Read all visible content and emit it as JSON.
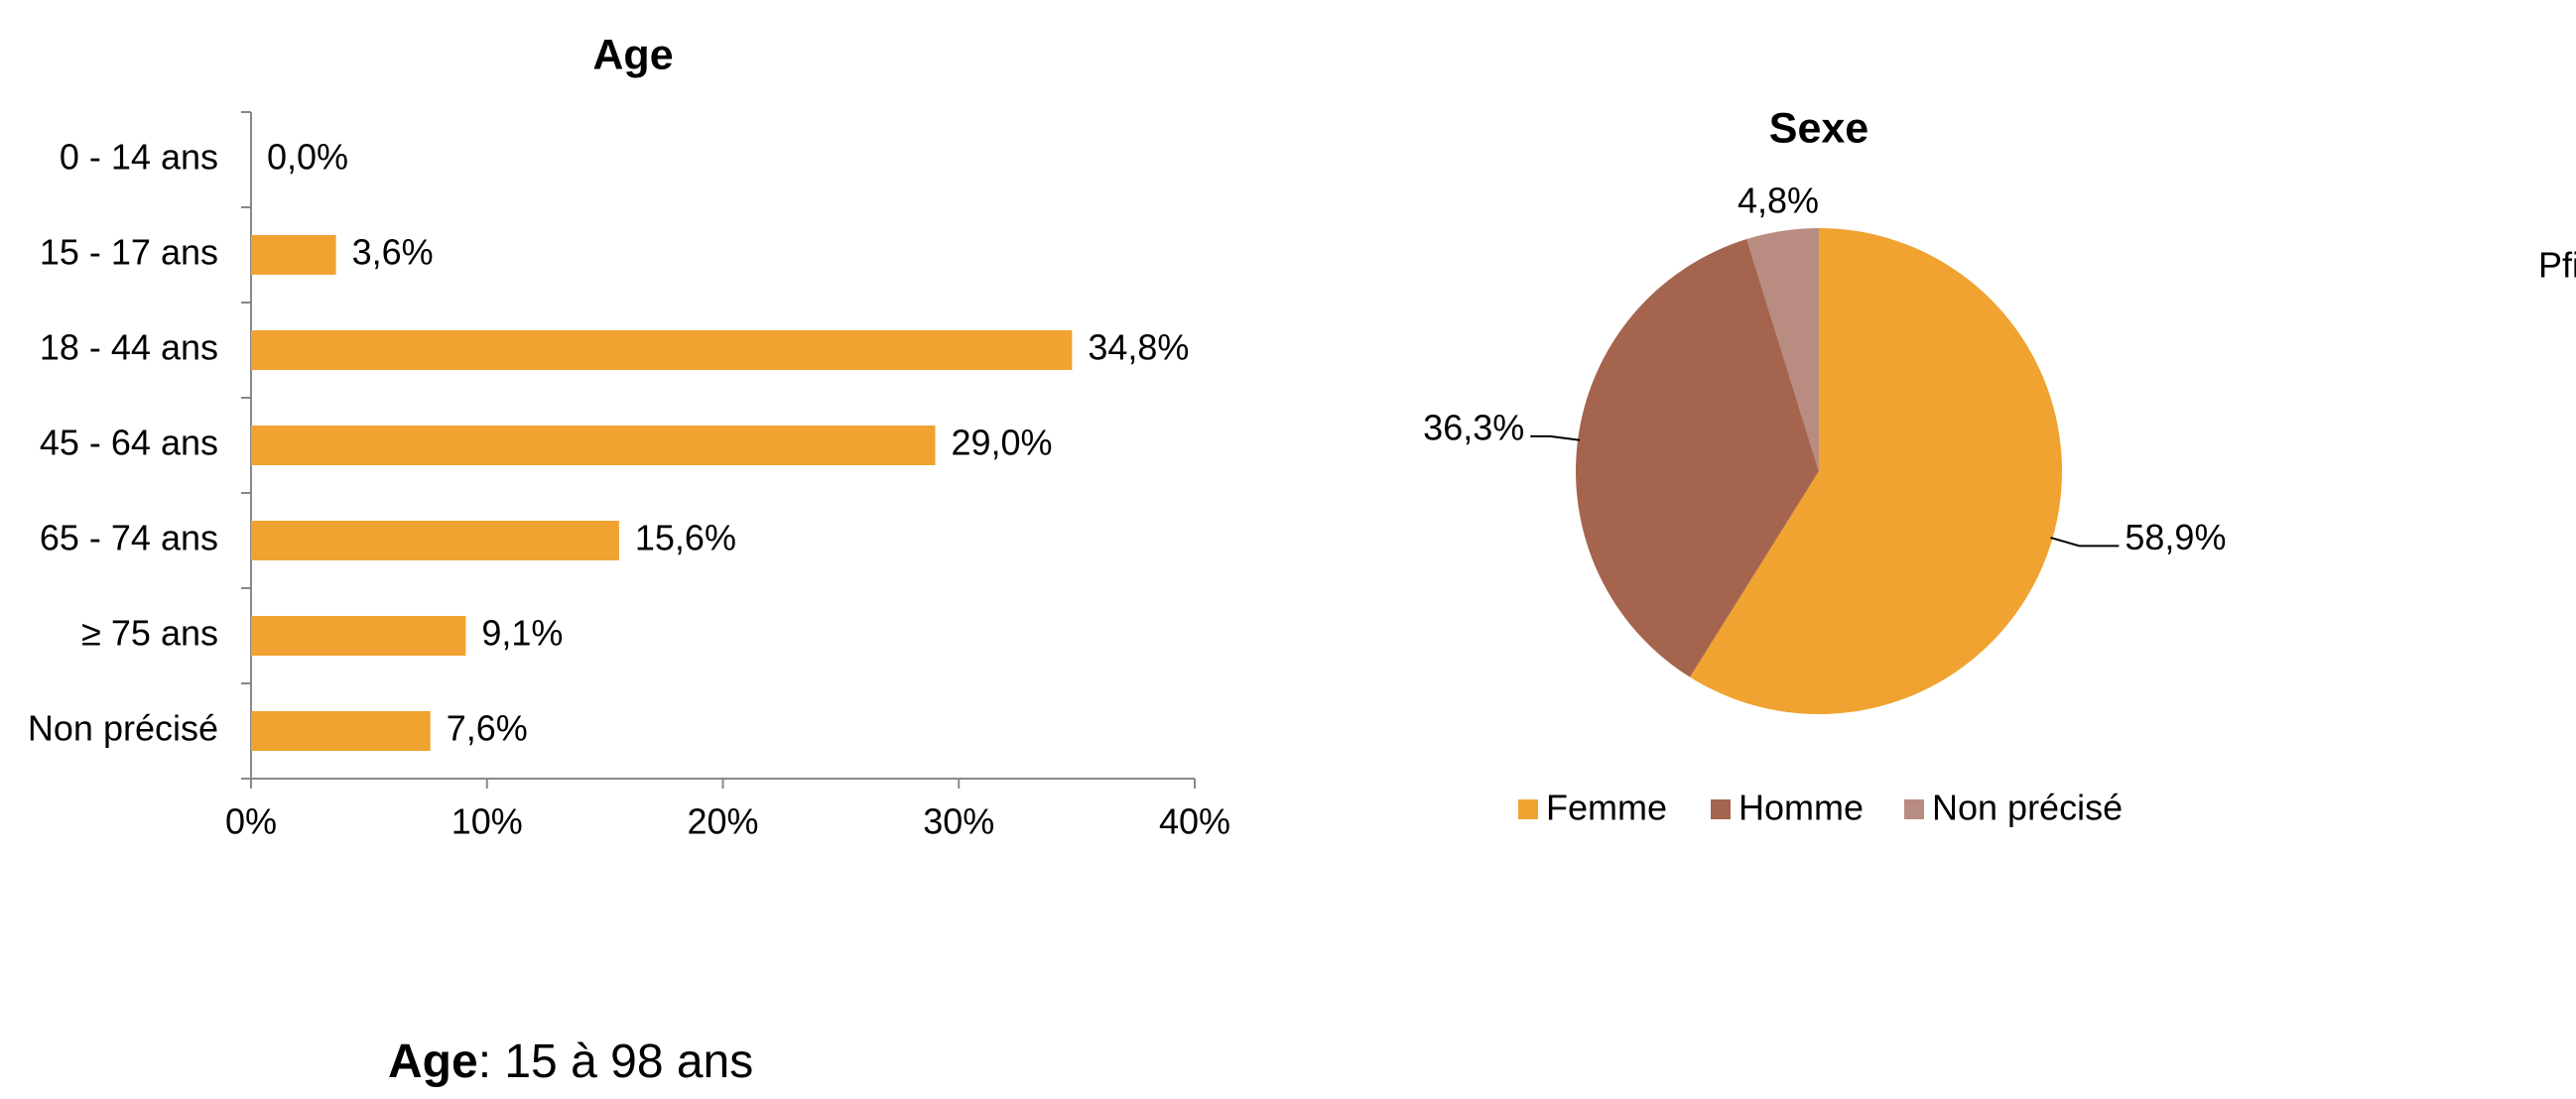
{
  "chart_data": [
    {
      "type": "hbar",
      "title": "Age",
      "categories": [
        "0 - 14 ans",
        "15 - 17 ans",
        "18 - 44 ans",
        "45 - 64 ans",
        "65 - 74 ans",
        "≥ 75 ans",
        "Non précisé"
      ],
      "values": [
        0.0,
        3.6,
        34.8,
        29.0,
        15.6,
        9.1,
        7.6
      ],
      "value_labels": [
        "0,0%",
        "3,6%",
        "34,8%",
        "29,0%",
        "15,6%",
        "9,1%",
        "7,6%"
      ],
      "color": "#f0a330",
      "xlim": [
        0,
        40
      ],
      "xticks": [
        {
          "value": 0,
          "label": "0%"
        },
        {
          "value": 10,
          "label": "10%"
        },
        {
          "value": 20,
          "label": "20%"
        },
        {
          "value": 30,
          "label": "30%"
        },
        {
          "value": 40,
          "label": "40%"
        }
      ]
    },
    {
      "type": "pie",
      "title": "Sexe",
      "categories": [
        "Femme",
        "Homme",
        "Non précisé"
      ],
      "values": [
        58.9,
        36.3,
        4.8
      ],
      "value_labels": [
        "58,9%",
        "36,3%",
        "4,8%"
      ],
      "colors": [
        "#f0a330",
        "#a5644e",
        "#b88c80"
      ],
      "legend": "bottom"
    }
  ],
  "footnote": {
    "label": "Age",
    "text": ": 15 à 98 ans"
  },
  "cropped_text": "Pfi"
}
